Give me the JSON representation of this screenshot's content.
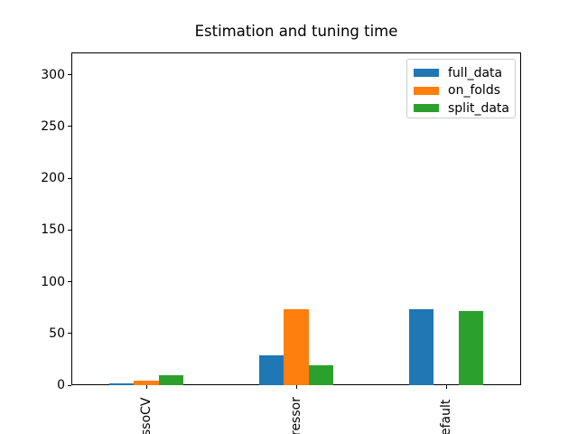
{
  "chart_data": {
    "type": "bar",
    "title": "Estimation and tuning time",
    "categories": [
      "ssoCV",
      "ressor",
      "efault"
    ],
    "series": [
      {
        "name": "full_data",
        "color": "#1f77b4",
        "values": [
          1.4,
          29,
          73.5
        ]
      },
      {
        "name": "on_folds",
        "color": "#ff7f0e",
        "values": [
          4.8,
          73,
          0
        ]
      },
      {
        "name": "split_data",
        "color": "#2ca02c",
        "values": [
          9.5,
          19.5,
          72
        ]
      }
    ],
    "xlabel": "",
    "ylabel": "",
    "ylim": [
      0,
      321.5
    ],
    "yticks": [
      0,
      50,
      100,
      150,
      200,
      250,
      300
    ],
    "grid": false,
    "legend_position": "upper right",
    "axis_color": "#000000",
    "legend_border_color": "#cccccc"
  }
}
